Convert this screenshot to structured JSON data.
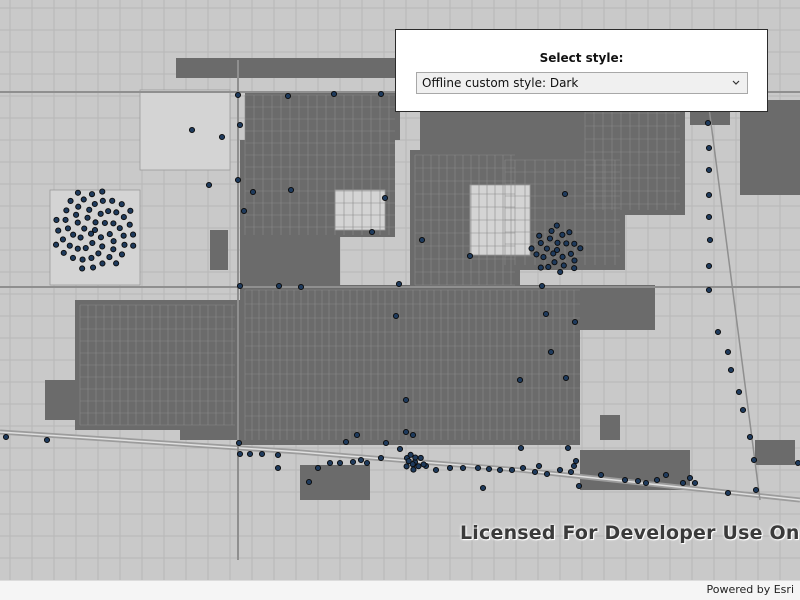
{
  "style_selector": {
    "label": "Select style:",
    "selected": "Offline custom style: Dark"
  },
  "map": {
    "watermark": "Licensed For Developer Use Only",
    "attribution": "Powered by Esri",
    "colors": {
      "background": "#c9c9c9",
      "grid": "#b7b7b7",
      "road": "#8f8f8f",
      "block": "#6b6b6b",
      "street_lines": "#8a8a8a",
      "feature_point": "#1e3a5c",
      "feature_outline": "#0b0b0b"
    }
  }
}
